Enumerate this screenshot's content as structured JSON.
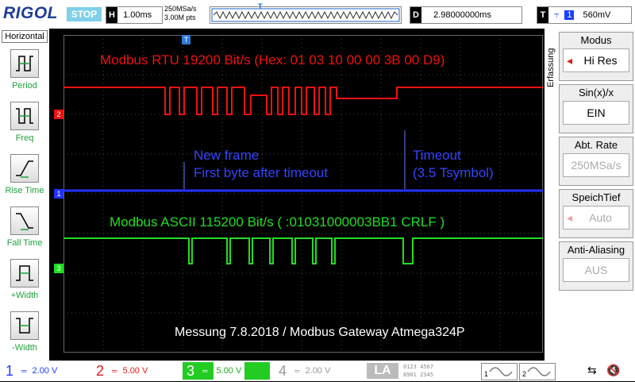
{
  "topbar": {
    "logo": "RIGOL",
    "run_state": "STOP",
    "timebase_key": "H",
    "timebase_value": "1.00ms",
    "sample_rate": "250MSa/s",
    "memory_depth": "3.00M pts",
    "trigger_pos_marker": "T",
    "delay_key": "D",
    "delay_value": "2.98000000ms",
    "trigger_key": "T",
    "trigger_channel": "1",
    "trigger_level": "560mV"
  },
  "left_panel": {
    "title": "Horizontal",
    "items": [
      {
        "label": "Period",
        "icon": "period-icon"
      },
      {
        "label": "Freq",
        "icon": "frequency-icon"
      },
      {
        "label": "Rise Time",
        "icon": "rise-time-icon"
      },
      {
        "label": "Fall Time",
        "icon": "fall-time-icon"
      },
      {
        "label": "+Width",
        "icon": "positive-width-icon"
      },
      {
        "label": "-Width",
        "icon": "negative-width-icon"
      }
    ]
  },
  "right_panel": {
    "side_label": "Erfassung",
    "buttons": [
      {
        "title": "Modus",
        "value": "Hi Res",
        "dim": false
      },
      {
        "title": "Sin(x)/x",
        "value": "EIN",
        "dim": false
      },
      {
        "title": "Abt. Rate",
        "value": "250MSa/s",
        "dim": true
      },
      {
        "title": "SpeichTief",
        "value": "Auto",
        "dim": true
      },
      {
        "title": "Anti-Aliasing",
        "value": "AUS",
        "dim": true
      }
    ]
  },
  "screen": {
    "annotation_red": "Modbus RTU 19200 Bit/s (Hex: 01 03 10 00 00 3B 00 D9)",
    "annotation_blue_1": "New frame",
    "annotation_blue_2": "First byte after timeout",
    "annotation_timeout_1": "Timeout",
    "annotation_timeout_2": "(3.5 Tsymbol)",
    "annotation_green": "Modbus ASCII 115200 Bit/s ( :01031000003BB1 CRLF )",
    "annotation_footer": "Messung 7.8.2018 / Modbus Gateway Atmega324P",
    "ch1_marker": "1",
    "ch2_marker": "2",
    "ch3_marker": "3",
    "trigger_level_marker": "T"
  },
  "bottombar": {
    "channels": [
      {
        "num": "1",
        "scale": "2.00 V",
        "color": "#1f3fff",
        "active": false
      },
      {
        "num": "2",
        "scale": "5.00 V",
        "color": "#e41b1b",
        "active": false
      },
      {
        "num": "3",
        "scale": "5.00 V",
        "color": "#ffffff",
        "active": true
      },
      {
        "num": "4",
        "scale": "2.00 V",
        "color": "#999999",
        "active": false
      }
    ],
    "la_label": "LA",
    "math1": "1",
    "math2": "2"
  },
  "colors": {
    "ch1": "#2233ff",
    "ch2": "#ee1111",
    "ch3": "#22dd22",
    "grid": "#555555"
  }
}
